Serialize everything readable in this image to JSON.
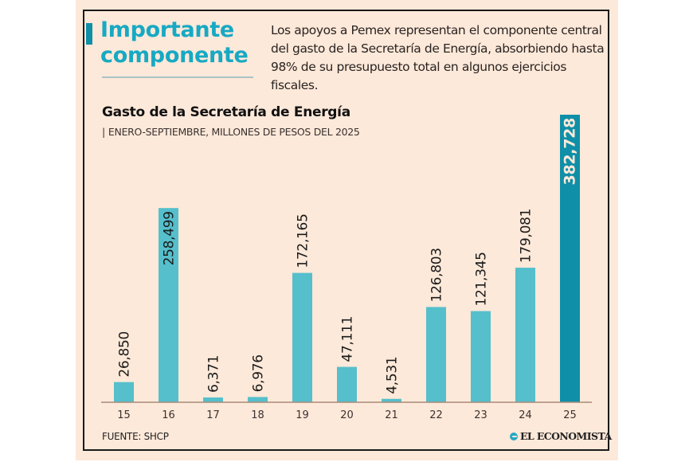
{
  "header": {
    "headline": [
      "Importante",
      "componente"
    ],
    "intro": "Los apoyos a Pemex representan el componente central del gasto de la Secretaría de Energía, absorbiendo hasta 98% de su presupuesto total en algunos ejercicios fiscales."
  },
  "colors": {
    "background": "#fde9d9",
    "bar": "#55bfcc",
    "bar_highlight": "#0f8fa8",
    "headline": "#17a9c4",
    "axis": "#a88a7a"
  },
  "footer": {
    "source": "FUENTE: SHCP",
    "brand": "EL ECONOMISTA"
  },
  "chart_data": {
    "type": "bar",
    "title": "Gasto de la Secretaría de Energía",
    "subtitle": "ENERO-SEPTIEMBRE, MILLONES DE PESOS DEL 2025",
    "xlabel": "",
    "ylabel": "",
    "categories": [
      "15",
      "16",
      "17",
      "18",
      "19",
      "20",
      "21",
      "22",
      "23",
      "24",
      "25"
    ],
    "values": [
      26850,
      258499,
      6371,
      6976,
      172165,
      47111,
      4531,
      126803,
      121345,
      179081,
      382728
    ],
    "value_labels": [
      "26,850",
      "258,499",
      "6,371",
      "6,976",
      "172,165",
      "47,111",
      "4,531",
      "126,803",
      "121,345",
      "179,081",
      "382,728"
    ],
    "highlight_index": 10,
    "ylim": [
      0,
      382728
    ],
    "grid": false,
    "legend": "none"
  }
}
